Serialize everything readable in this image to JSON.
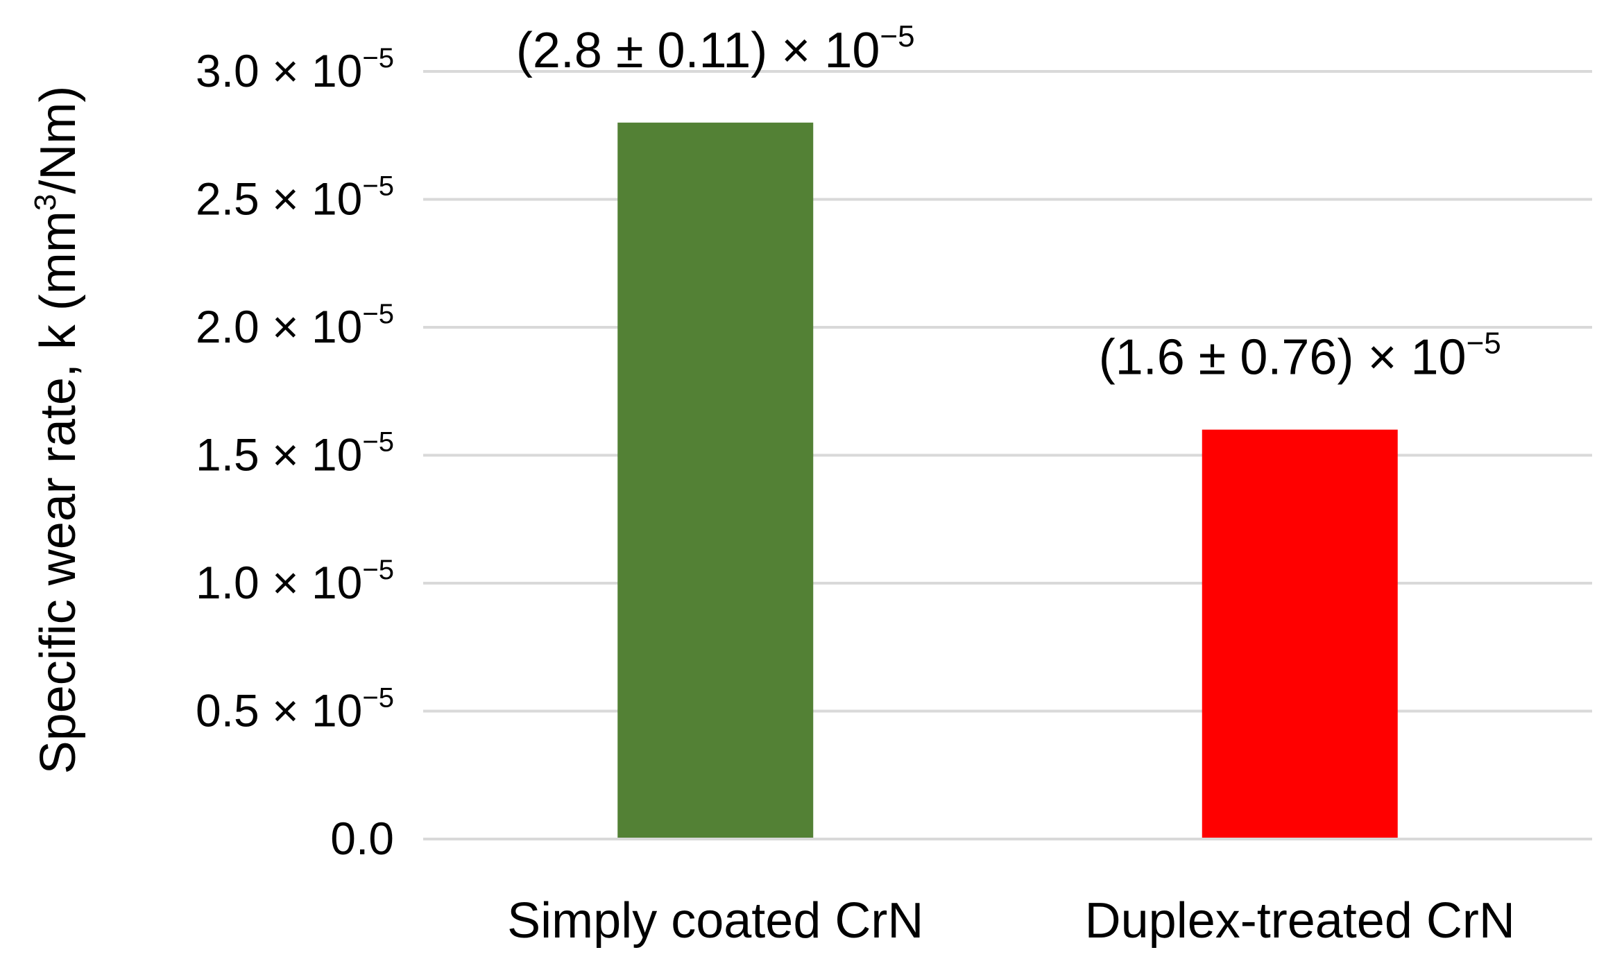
{
  "chart_data": {
    "type": "bar",
    "title": "",
    "xlabel": "",
    "ylabel": "Specific wear rate, k (mm³/Nm)",
    "ylim": [
      0,
      3e-05
    ],
    "grid": true,
    "legend": "none",
    "categories": [
      "Simply coated CrN",
      "Duplex-treated CrN"
    ],
    "values": [
      2.8e-05,
      1.6e-05
    ],
    "colors": [
      "#538135",
      "#ff0000"
    ],
    "data_labels": [
      {
        "base": "(2.8 ± 0.11) × 10",
        "exp": "−5"
      },
      {
        "base": "(1.6 ± 0.76) × 10",
        "exp": "−5"
      }
    ],
    "y_ticks": [
      {
        "value": 0,
        "base": "0.0",
        "exp": ""
      },
      {
        "value": 5e-06,
        "base": "0.5 × 10",
        "exp": "−5"
      },
      {
        "value": 1e-05,
        "base": "1.0 × 10",
        "exp": "−5"
      },
      {
        "value": 1.5e-05,
        "base": "1.5 × 10",
        "exp": "−5"
      },
      {
        "value": 2e-05,
        "base": "2.0 × 10",
        "exp": "−5"
      },
      {
        "value": 2.5e-05,
        "base": "2.5 × 10",
        "exp": "−5"
      },
      {
        "value": 3e-05,
        "base": "3.0 × 10",
        "exp": "−5"
      }
    ],
    "gridline_color": "#d9d9d9",
    "axis_line_color": "#d9d9d9"
  }
}
